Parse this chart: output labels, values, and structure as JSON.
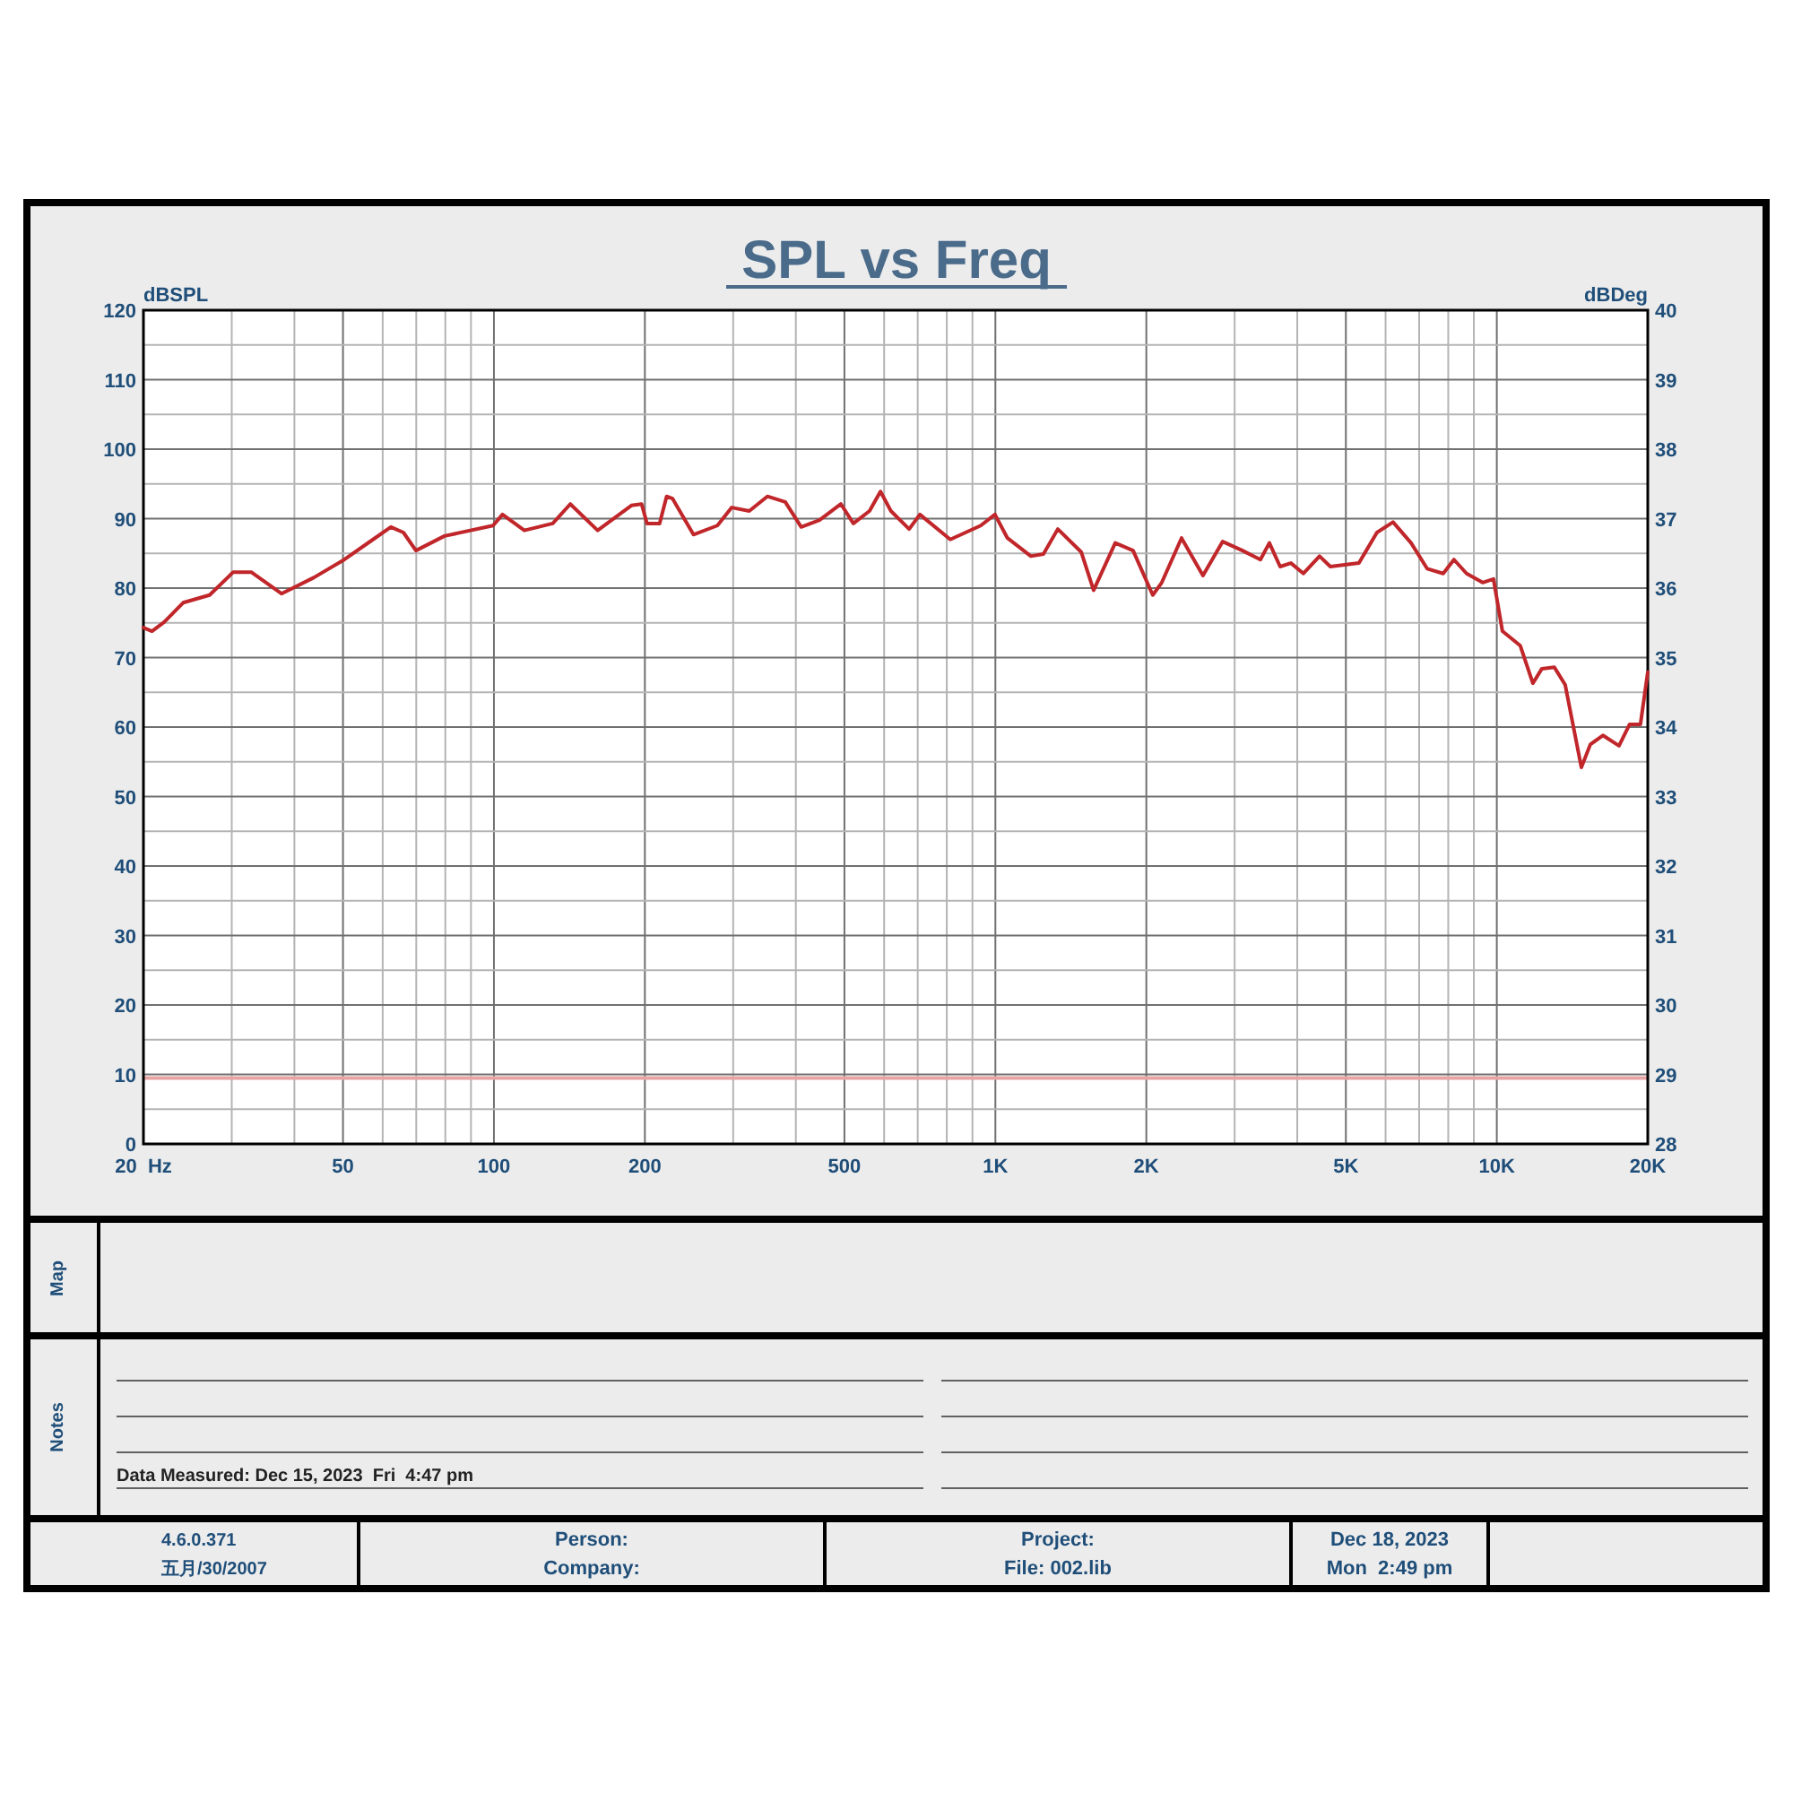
{
  "chart_data": {
    "type": "line",
    "title": "SPL vs Freq",
    "ylabel": "dBSPL",
    "y2label": "dBDeg",
    "log": "x",
    "grid": true,
    "line_style": "solid",
    "xlim": [
      20,
      20000
    ],
    "xticks": [
      {
        "value": 20,
        "label": "20  Hz"
      },
      {
        "value": 30,
        "label": null
      },
      {
        "value": 40,
        "label": null
      },
      50,
      {
        "value": 60,
        "label": null
      },
      {
        "value": 70,
        "label": null
      },
      {
        "value": 80,
        "label": null
      },
      {
        "value": 90,
        "label": null
      },
      100,
      200,
      {
        "value": 300,
        "label": null
      },
      {
        "value": 400,
        "label": null
      },
      500,
      {
        "value": 600,
        "label": null
      },
      {
        "value": 700,
        "label": null
      },
      {
        "value": 800,
        "label": null
      },
      {
        "value": 900,
        "label": null
      },
      {
        "value": 1000,
        "label": "1K"
      },
      {
        "value": 2000,
        "label": "2K"
      },
      {
        "value": 3000,
        "label": null
      },
      {
        "value": 4000,
        "label": null
      },
      {
        "value": 5000,
        "label": "5K"
      },
      {
        "value": 6000,
        "label": null
      },
      {
        "value": 7000,
        "label": null
      },
      {
        "value": 8000,
        "label": null
      },
      {
        "value": 9000,
        "label": null
      },
      {
        "value": 10000,
        "label": "10K"
      },
      {
        "value": 20000,
        "label": "20K"
      }
    ],
    "ylim": [
      0,
      120
    ],
    "yticks": [
      0,
      {
        "value": 5,
        "label": null
      },
      10,
      {
        "value": 15,
        "label": null
      },
      20,
      {
        "value": 25,
        "label": null
      },
      30,
      {
        "value": 35,
        "label": null
      },
      40,
      {
        "value": 45,
        "label": null
      },
      50,
      {
        "value": 55,
        "label": null
      },
      60,
      {
        "value": 65,
        "label": null
      },
      70,
      {
        "value": 75,
        "label": null
      },
      80,
      {
        "value": 85,
        "label": null
      },
      90,
      {
        "value": 95,
        "label": null
      },
      100,
      {
        "value": 105,
        "label": null
      },
      110,
      {
        "value": 115,
        "label": null
      },
      120
    ],
    "y2lim": [
      28,
      40
    ],
    "y2ticks": [
      28,
      29,
      30,
      31,
      32,
      33,
      34,
      35,
      36,
      37,
      38,
      39,
      40
    ],
    "ref_lines": [
      {
        "axis": "y",
        "value": 9.5,
        "color": "#e8a3a3"
      }
    ],
    "annotations": [
      "Map",
      "Notes",
      "Data Measured: Dec 15, 2023  Fri  4:47 pm",
      "4.6.0.371",
      "五月/30/2007",
      "Person:",
      "Company:",
      "Project:",
      "File: 002.lib",
      "Dec 18, 2023",
      "Mon  2:49 pm"
    ],
    "series": [
      {
        "color": "#c0262a",
        "x": [
          20,
          20.8,
          22,
          24,
          27.1,
          30.2,
          32.8,
          37.7,
          43.7,
          50.3,
          57.4,
          62.3,
          66,
          69.9,
          79.7,
          99.6,
          104,
          115,
          131,
          142,
          161,
          188,
          197,
          202,
          214,
          221,
          227,
          250,
          279,
          298,
          323,
          351,
          381,
          410,
          446,
          492,
          521,
          561,
          590,
          619,
          673,
          707,
          813,
          935,
          998,
          1057,
          1177,
          1247,
          1332,
          1483,
          1570,
          1734,
          1882,
          2060,
          2147,
          2351,
          2594,
          2840,
          3110,
          3377,
          3519,
          3697,
          3885,
          4115,
          4431,
          4656,
          5309,
          5766,
          6209,
          6745,
          7262,
          7818,
          8214,
          8704,
          9370,
          9847,
          10262,
          11139,
          11800,
          12298,
          13025,
          13685,
          14743,
          15364,
          16274,
          17525,
          18403,
          19339,
          20000
        ],
        "values": [
          74.3,
          73.8,
          75.1,
          77.9,
          79,
          82.3,
          82.3,
          79.2,
          81.5,
          84.1,
          87,
          88.8,
          88,
          85.4,
          87.5,
          89,
          90.6,
          88.3,
          89.3,
          92.1,
          88.3,
          91.9,
          92.1,
          89.3,
          89.3,
          93.2,
          92.9,
          87.7,
          89,
          91.6,
          91.1,
          93.2,
          92.4,
          88.8,
          89.8,
          92.1,
          89.3,
          91.1,
          93.9,
          91.1,
          88.5,
          90.6,
          87,
          89,
          90.6,
          87.2,
          84.6,
          84.9,
          88.5,
          85.2,
          79.7,
          86.5,
          85.4,
          79,
          80.8,
          87.2,
          81.8,
          86.7,
          85.4,
          84.1,
          86.5,
          83.1,
          83.6,
          82.1,
          84.6,
          83.1,
          83.6,
          88,
          89.5,
          86.5,
          82.8,
          82.1,
          84.1,
          82.1,
          80.8,
          81.3,
          73.8,
          71.7,
          66.3,
          68.4,
          68.6,
          66.1,
          54.2,
          57.5,
          58.8,
          57.3,
          60.4,
          60.4,
          67.9
        ]
      }
    ]
  }
}
